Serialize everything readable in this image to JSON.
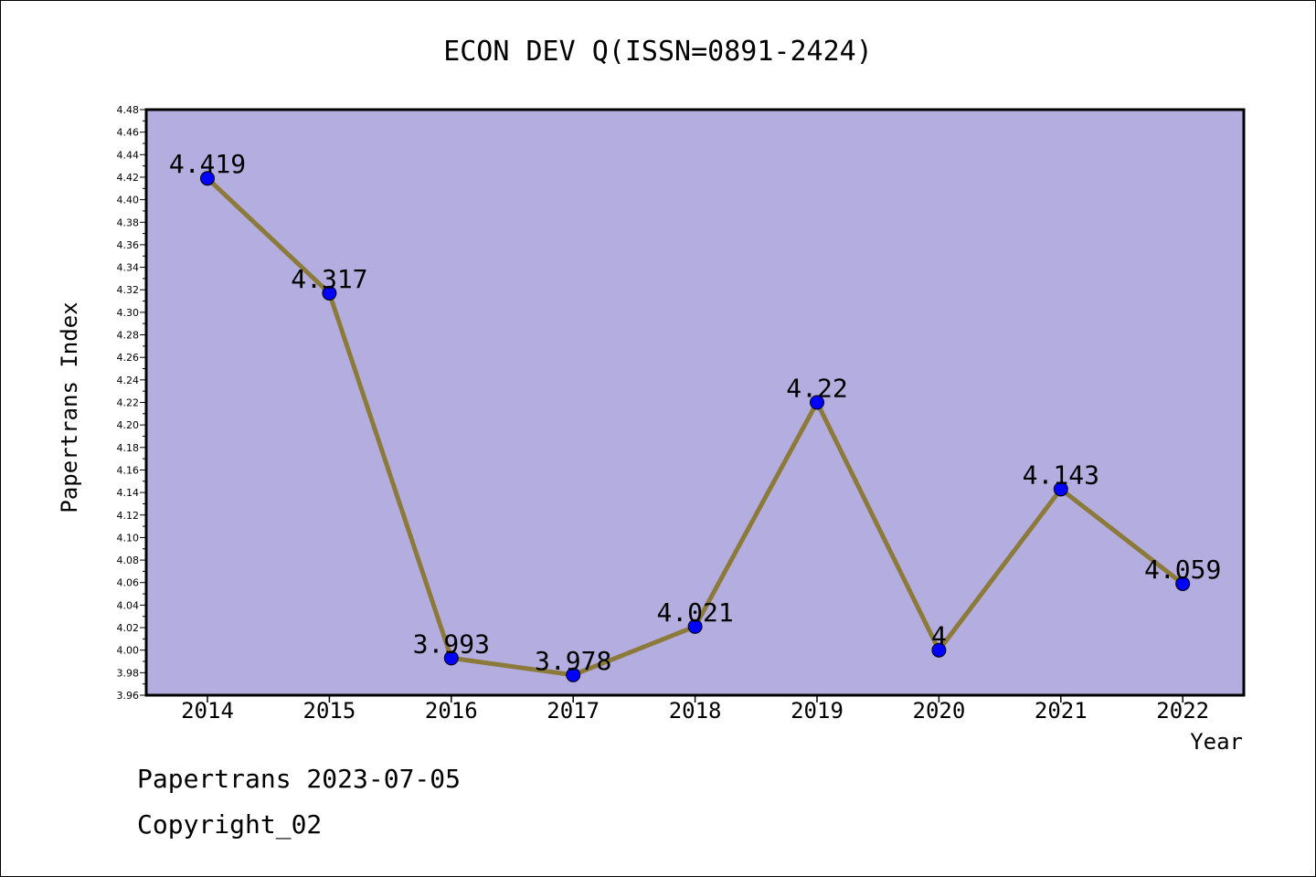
{
  "chart_data": {
    "type": "line",
    "title": "ECON DEV Q(ISSN=0891-2424)",
    "xlabel": "Year",
    "ylabel": "Papertrans Index",
    "x": [
      "2014",
      "2015",
      "2016",
      "2017",
      "2018",
      "2019",
      "2020",
      "2021",
      "2022"
    ],
    "values": [
      4.419,
      4.317,
      3.993,
      3.978,
      4.021,
      4.22,
      4.0,
      4.143,
      4.059
    ],
    "data_labels": [
      "4.419",
      "4.317",
      "3.993",
      "3.978",
      "4.021",
      "4.22",
      "4",
      "4.143",
      "4.059"
    ],
    "ylim": [
      3.96,
      4.48
    ],
    "ytick_step": 0.02,
    "grid": false,
    "colors": {
      "plot_background": "#b4aee0",
      "line": "#8b7a3a",
      "marker": "#0000ff"
    }
  },
  "footer": {
    "line1": "Papertrans 2023-07-05",
    "line2": "Copyright_02"
  }
}
